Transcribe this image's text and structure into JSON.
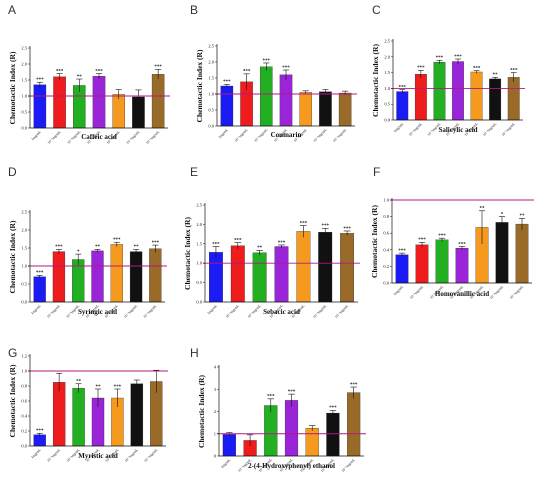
{
  "colors": [
    "#1b1bf5",
    "#ee1c1c",
    "#22b022",
    "#9a24d8",
    "#f59a1e",
    "#111111",
    "#9a6b28"
  ],
  "refline_color": "#b01a84",
  "ylabel_text": "Chemotactic Index (R)",
  "xtick_labels": [
    "1mg/mL",
    "10⁻¹mg/mL",
    "10⁻²mg/mL",
    "10⁻³mg/mL",
    "10⁻⁴mg/mL",
    "10⁻⁵mg/mL",
    "10⁻⁶mg/mL"
  ],
  "panels": [
    {
      "letter": "A",
      "title": "Caffeic acid",
      "ylabel": "Chemotactic Index (R)"
    },
    {
      "letter": "B",
      "title": "Coumarin",
      "ylabel": "Chemotactic Index (R)"
    },
    {
      "letter": "C",
      "title": "Salicylic acid",
      "ylabel": "Chemotactic Index (R)"
    },
    {
      "letter": "D",
      "title": "Syringic acid",
      "ylabel": "Chemotactic Index (R)"
    },
    {
      "letter": "E",
      "title": "Sebacic acid",
      "ylabel": "Chemotactic Index (R)"
    },
    {
      "letter": "F",
      "title": "Homovanillic acid",
      "ylabel": "Chemotactic Index (R)"
    },
    {
      "letter": "G",
      "title": "Myristic acid",
      "ylabel": "Chemotactic Index (R)"
    },
    {
      "letter": "H",
      "title": "2-(4-Hydroxyphenyl) ethanol",
      "ylabel": "Chemotactic Index (R)"
    }
  ],
  "chart_data": [
    {
      "panel": "A",
      "type": "bar",
      "title": "Caffeic acid",
      "ylabel": "Chemotactic Index (R)",
      "categories": [
        "1mg/mL",
        "10⁻¹mg/mL",
        "10⁻²mg/mL",
        "10⁻³mg/mL",
        "10⁻⁴mg/mL",
        "10⁻⁵mg/mL",
        "10⁻⁶mg/mL"
      ],
      "values": [
        1.35,
        1.6,
        1.33,
        1.62,
        1.05,
        0.97,
        1.68
      ],
      "errors": [
        0.08,
        0.1,
        0.2,
        0.08,
        0.15,
        0.22,
        0.15
      ],
      "significance": [
        "***",
        "***",
        "**",
        "***",
        "",
        "",
        "***"
      ],
      "ylim": [
        0,
        2.5
      ],
      "yticks": [
        "0.0",
        "0.5",
        "1.0",
        "1.5",
        "2.0",
        "2.5"
      ],
      "refline": 1.0
    },
    {
      "panel": "B",
      "type": "bar",
      "title": "Coumarin",
      "ylabel": "Chemotactic Index (R)",
      "categories": [
        "1mg/mL",
        "10⁻¹mg/mL",
        "10⁻²mg/mL",
        "10⁻³mg/mL",
        "10⁻⁴mg/mL",
        "10⁻⁵mg/mL",
        "10⁻⁶mg/mL"
      ],
      "values": [
        1.25,
        1.38,
        1.85,
        1.6,
        1.05,
        1.07,
        1.03
      ],
      "errors": [
        0.05,
        0.25,
        0.12,
        0.15,
        0.05,
        0.07,
        0.06
      ],
      "significance": [
        "***",
        "***",
        "***",
        "***",
        "",
        "",
        ""
      ],
      "ylim": [
        0,
        2.5
      ],
      "yticks": [
        "0.0",
        "0.5",
        "1.0",
        "1.5",
        "2.0",
        "2.5"
      ],
      "refline": 1.0
    },
    {
      "panel": "C",
      "type": "bar",
      "title": "Salicylic acid",
      "ylabel": "Chemotactic Index (R)",
      "categories": [
        "1mg/mL",
        "10⁻¹mg/mL",
        "10⁻²mg/mL",
        "10⁻³mg/mL",
        "10⁻⁴mg/mL",
        "10⁻⁵mg/mL",
        "10⁻⁶mg/mL"
      ],
      "values": [
        0.9,
        1.45,
        1.83,
        1.85,
        1.52,
        1.3,
        1.35
      ],
      "errors": [
        0.06,
        0.12,
        0.06,
        0.08,
        0.04,
        0.05,
        0.15
      ],
      "significance": [
        "***",
        "***",
        "***",
        "***",
        "***",
        "**",
        "***"
      ],
      "ylim": [
        0,
        2.5
      ],
      "yticks": [
        "0.0",
        "0.5",
        "1.0",
        "1.5",
        "2.0",
        "2.5"
      ],
      "refline": 1.0
    },
    {
      "panel": "D",
      "type": "bar",
      "title": "Syringic acid",
      "ylabel": "Chemotactic Index (R)",
      "categories": [
        "1mg/mL",
        "10⁻¹mg/mL",
        "10⁻²mg/mL",
        "10⁻³mg/mL",
        "10⁻⁴mg/mL",
        "10⁻⁵mg/mL",
        "10⁻⁶mg/mL"
      ],
      "values": [
        0.7,
        1.4,
        1.18,
        1.42,
        1.6,
        1.4,
        1.48
      ],
      "errors": [
        0.04,
        0.06,
        0.15,
        0.04,
        0.06,
        0.06,
        0.1
      ],
      "significance": [
        "***",
        "***",
        "*",
        "**",
        "***",
        "**",
        "***"
      ],
      "ylim": [
        0,
        2.5
      ],
      "yticks": [
        "0.0",
        "0.5",
        "1.0",
        "1.5",
        "2.0",
        "2.5"
      ],
      "refline": 1.0
    },
    {
      "panel": "E",
      "type": "bar",
      "title": "Sebacic acid",
      "ylabel": "Chemotactic Index (R)",
      "categories": [
        "1mg/mL",
        "10⁻¹mg/mL",
        "10⁻²mg/mL",
        "10⁻³mg/mL",
        "10⁻⁴mg/mL",
        "10⁻⁵mg/mL",
        "10⁻⁶mg/mL"
      ],
      "values": [
        1.28,
        1.45,
        1.27,
        1.43,
        1.82,
        1.8,
        1.77
      ],
      "errors": [
        0.15,
        0.08,
        0.06,
        0.04,
        0.15,
        0.1,
        0.06
      ],
      "significance": [
        "***",
        "***",
        "**",
        "***",
        "***",
        "***",
        "***"
      ],
      "ylim": [
        0,
        2.5
      ],
      "yticks": [
        "0.0",
        "0.5",
        "1.0",
        "1.5",
        "2.0",
        "2.5"
      ],
      "refline": 1.0
    },
    {
      "panel": "F",
      "type": "bar",
      "title": "Homovanillic acid",
      "ylabel": "Chemotactic Index (R)",
      "categories": [
        "1mg/mL",
        "10⁻¹mg/mL",
        "10⁻²mg/mL",
        "10⁻³mg/mL",
        "10⁻⁴mg/mL",
        "10⁻⁵mg/mL",
        "10⁻⁶mg/mL"
      ],
      "values": [
        0.34,
        0.46,
        0.52,
        0.42,
        0.67,
        0.73,
        0.71
      ],
      "errors": [
        0.02,
        0.03,
        0.02,
        0.02,
        0.2,
        0.07,
        0.07
      ],
      "significance": [
        "***",
        "***",
        "***",
        "***",
        "**",
        "*",
        "**"
      ],
      "ylim": [
        0,
        1.0
      ],
      "yticks": [
        "0.0",
        "0.2",
        "0.4",
        "0.6",
        "0.8",
        "1.0"
      ],
      "refline": 1.0
    },
    {
      "panel": "G",
      "type": "bar",
      "title": "Myristic acid",
      "ylabel": "Chemotactic Index (R)",
      "categories": [
        "1mg/mL",
        "10⁻¹mg/mL",
        "10⁻²mg/mL",
        "10⁻³mg/mL",
        "10⁻⁴mg/mL",
        "10⁻⁵mg/mL",
        "10⁻⁶mg/mL"
      ],
      "values": [
        0.15,
        0.85,
        0.77,
        0.64,
        0.64,
        0.83,
        0.86
      ],
      "errors": [
        0.02,
        0.12,
        0.06,
        0.12,
        0.12,
        0.05,
        0.15
      ],
      "significance": [
        "***",
        "",
        "**",
        "**",
        "***",
        "",
        ""
      ],
      "ylim": [
        0,
        1.2
      ],
      "yticks": [
        "0.0",
        "0.2",
        "0.4",
        "0.6",
        "0.8",
        "1.0",
        "1.2"
      ],
      "refline": 1.0
    },
    {
      "panel": "H",
      "type": "bar",
      "title": "2-(4-Hydroxyphenyl) ethanol",
      "ylabel": "Chemotactic Index (R)",
      "categories": [
        "1mg/mL",
        "10⁻¹mg/mL",
        "10⁻²mg/mL",
        "10⁻³mg/mL",
        "10⁻⁴mg/mL",
        "10⁻⁵mg/mL",
        "10⁻⁶mg/mL"
      ],
      "values": [
        0.97,
        0.7,
        2.27,
        2.5,
        1.25,
        1.93,
        2.85
      ],
      "errors": [
        0.08,
        0.25,
        0.3,
        0.28,
        0.12,
        0.12,
        0.25
      ],
      "significance": [
        "",
        "",
        "***",
        "***",
        "",
        "***",
        "***"
      ],
      "ylim": [
        0,
        4
      ],
      "yticks": [
        "0",
        "1",
        "2",
        "3",
        "4"
      ],
      "refline": 1.0
    }
  ]
}
